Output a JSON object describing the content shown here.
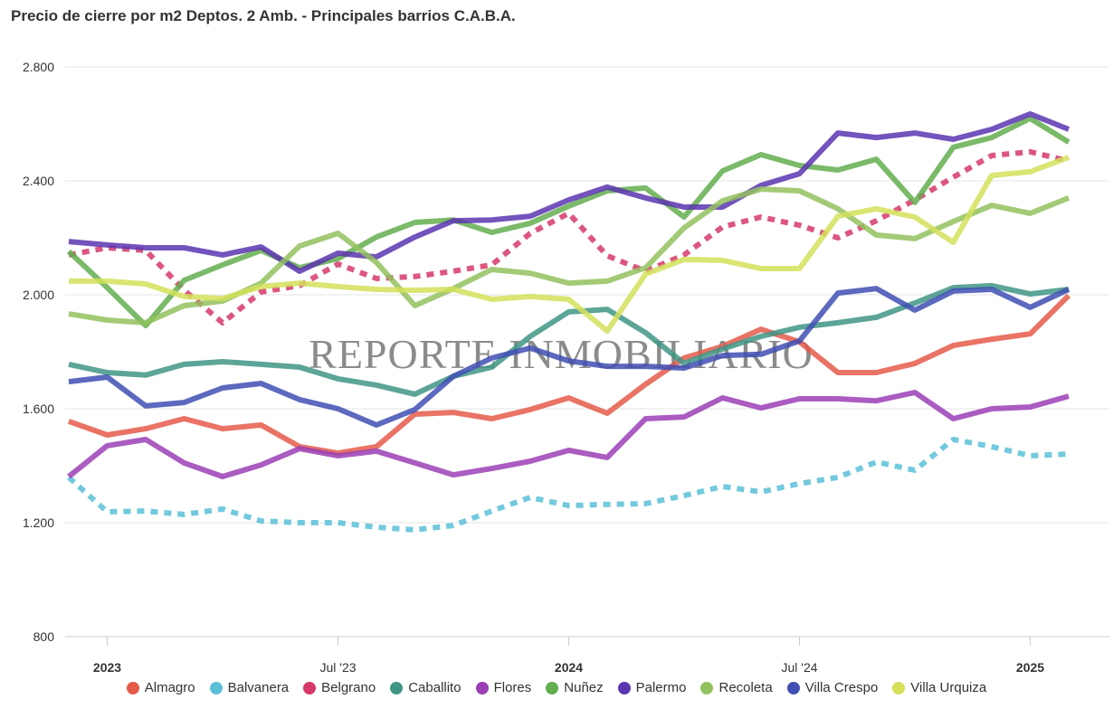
{
  "chart_data": {
    "type": "line",
    "title": "Precio de cierre por m2 Deptos. 2 Amb. - Principales barrios C.A.B.A.",
    "watermark": "REPORTE INMOBILIARIO",
    "xlabel": "",
    "ylabel": "",
    "ylim": [
      800,
      2800
    ],
    "yticks": [
      800,
      1200,
      1600,
      2000,
      2400,
      2800
    ],
    "ytick_labels": [
      "800",
      "1.200",
      "1.600",
      "2.000",
      "2.400",
      "2.800"
    ],
    "x": [
      "Dic '22",
      "Ene '23",
      "Feb '23",
      "Mar '23",
      "Abr '23",
      "May '23",
      "Jun '23",
      "Jul '23",
      "Ago '23",
      "Sep '23",
      "Oct '23",
      "Nov '23",
      "Dic '23",
      "Ene '24",
      "Feb '24",
      "Mar '24",
      "Abr '24",
      "May '24",
      "Jun '24",
      "Jul '24",
      "Ago '24",
      "Sep '24",
      "Oct '24",
      "Nov '24",
      "Dic '24",
      "Ene '25",
      "Feb '25"
    ],
    "xticks": [
      {
        "index": 1,
        "label": "2023",
        "major": true
      },
      {
        "index": 7,
        "label": "Jul '23",
        "major": false
      },
      {
        "index": 13,
        "label": "2024",
        "major": true
      },
      {
        "index": 19,
        "label": "Jul '24",
        "major": false
      },
      {
        "index": 25,
        "label": "2025",
        "major": true
      }
    ],
    "grid": true,
    "legend_position": "bottom",
    "series": [
      {
        "name": "Almagro",
        "color": "#e55a4a",
        "dash": false,
        "values": [
          1556,
          1508,
          1530,
          1565,
          1530,
          1543,
          1467,
          1444,
          1467,
          1581,
          1587,
          1565,
          1597,
          1638,
          1584,
          1686,
          1778,
          1819,
          1879,
          1835,
          1727,
          1727,
          1759,
          1822,
          1844,
          1863,
          1997
        ]
      },
      {
        "name": "Balvanera",
        "color": "#5bbfd7",
        "dash": true,
        "values": [
          1359,
          1238,
          1241,
          1229,
          1248,
          1206,
          1200,
          1200,
          1184,
          1175,
          1190,
          1241,
          1289,
          1260,
          1264,
          1267,
          1295,
          1327,
          1308,
          1337,
          1359,
          1413,
          1384,
          1492,
          1467,
          1435,
          1441
        ]
      },
      {
        "name": "Belgrano",
        "color": "#d6386a",
        "dash": true,
        "values": [
          2140,
          2165,
          2156,
          2016,
          1902,
          2010,
          2032,
          2108,
          2057,
          2064,
          2083,
          2105,
          2216,
          2286,
          2137,
          2083,
          2140,
          2238,
          2273,
          2244,
          2200,
          2260,
          2333,
          2413,
          2489,
          2502,
          2470
        ]
      },
      {
        "name": "Caballito",
        "color": "#3f9585",
        "dash": false,
        "values": [
          1756,
          1727,
          1718,
          1756,
          1765,
          1756,
          1746,
          1705,
          1683,
          1651,
          1714,
          1746,
          1854,
          1940,
          1949,
          1867,
          1759,
          1810,
          1854,
          1886,
          1902,
          1921,
          1971,
          2025,
          2032,
          2003,
          2019
        ]
      },
      {
        "name": "Flores",
        "color": "#9b3fb5",
        "dash": false,
        "values": [
          1362,
          1470,
          1492,
          1410,
          1362,
          1403,
          1460,
          1435,
          1451,
          1410,
          1368,
          1390,
          1416,
          1454,
          1429,
          1565,
          1571,
          1638,
          1603,
          1635,
          1635,
          1628,
          1657,
          1565,
          1600,
          1606,
          1644
        ]
      },
      {
        "name": "Nuñez",
        "color": "#63ae4f",
        "dash": false,
        "values": [
          2152,
          2025,
          1892,
          2051,
          2105,
          2156,
          2095,
          2127,
          2203,
          2254,
          2263,
          2219,
          2251,
          2311,
          2365,
          2375,
          2273,
          2435,
          2492,
          2454,
          2438,
          2476,
          2324,
          2518,
          2552,
          2619,
          2536
        ]
      },
      {
        "name": "Palermo",
        "color": "#5b35b0",
        "dash": false,
        "values": [
          2187,
          2175,
          2165,
          2165,
          2140,
          2168,
          2083,
          2146,
          2133,
          2203,
          2260,
          2263,
          2276,
          2333,
          2378,
          2340,
          2308,
          2308,
          2384,
          2425,
          2568,
          2552,
          2568,
          2546,
          2581,
          2635,
          2581
        ]
      },
      {
        "name": "Recoleta",
        "color": "#93c15e",
        "dash": false,
        "values": [
          1933,
          1911,
          1902,
          1962,
          1978,
          2041,
          2171,
          2216,
          2114,
          1962,
          2022,
          2089,
          2076,
          2041,
          2048,
          2095,
          2235,
          2330,
          2371,
          2365,
          2302,
          2210,
          2197,
          2257,
          2314,
          2286,
          2340
        ]
      },
      {
        "name": "Villa Crespo",
        "color": "#3f4fb3",
        "dash": false,
        "values": [
          1695,
          1711,
          1610,
          1622,
          1673,
          1689,
          1632,
          1600,
          1543,
          1597,
          1714,
          1778,
          1813,
          1768,
          1749,
          1749,
          1743,
          1787,
          1791,
          1838,
          2006,
          2022,
          1946,
          2013,
          2019,
          1956,
          2019
        ]
      },
      {
        "name": "Villa Urquiza",
        "color": "#d4e05a",
        "dash": false,
        "values": [
          2048,
          2048,
          2038,
          1994,
          1987,
          2029,
          2041,
          2029,
          2019,
          2016,
          2019,
          1984,
          1994,
          1984,
          1873,
          2073,
          2124,
          2121,
          2092,
          2092,
          2276,
          2302,
          2273,
          2184,
          2419,
          2432,
          2483
        ]
      }
    ]
  }
}
